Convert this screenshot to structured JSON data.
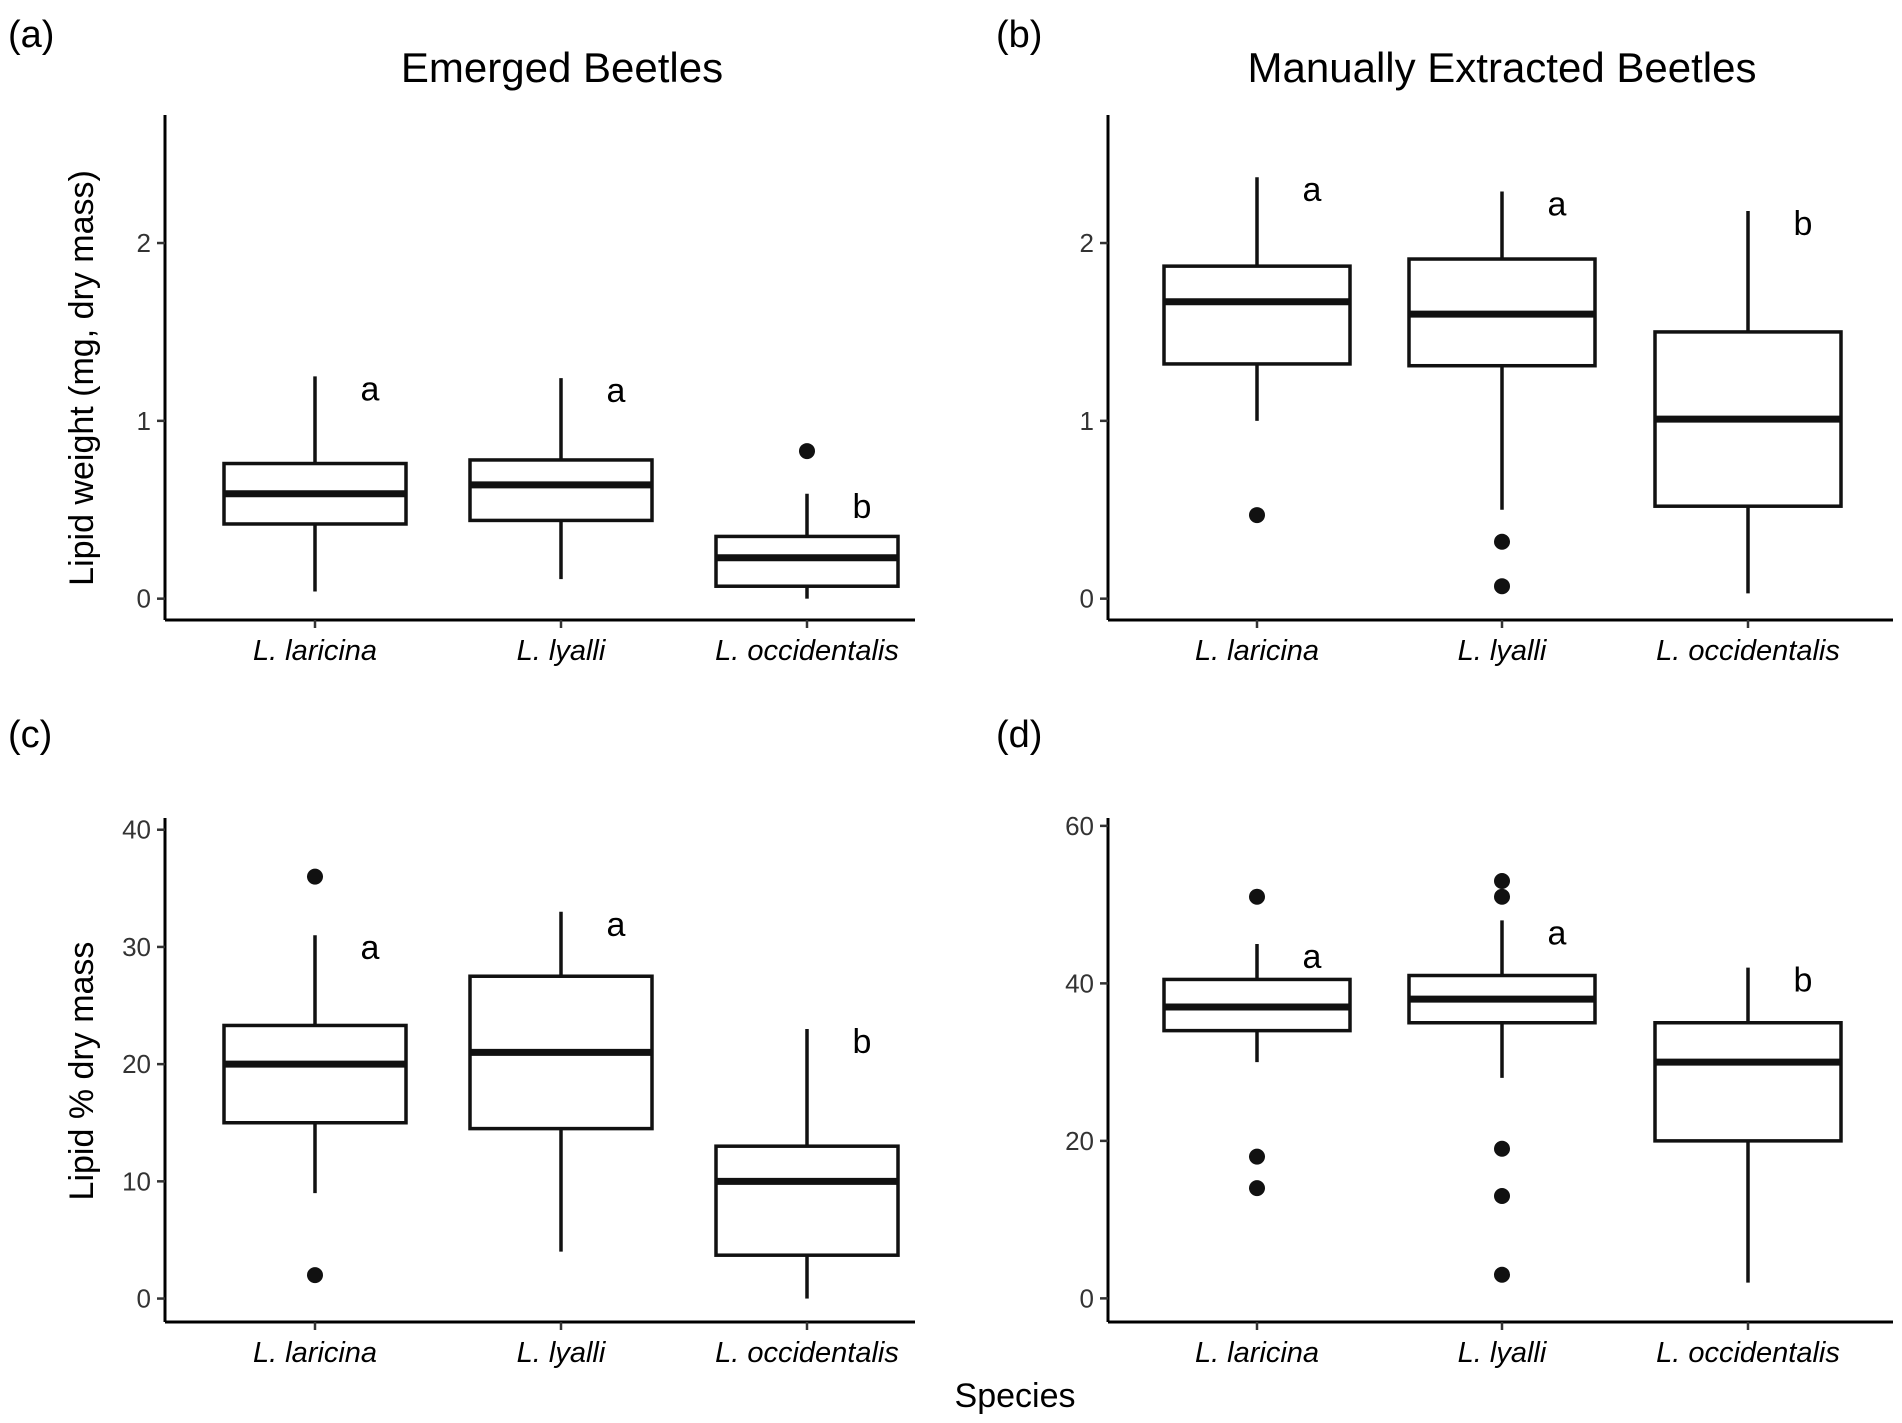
{
  "figure": {
    "x_axis_title": "Species",
    "y_axis_title_top": "Lipid weight (mg, dry mass)",
    "y_axis_title_bottom": "Lipid % dry mass"
  },
  "chart_data": [
    {
      "type": "boxplot",
      "panel": "(a)",
      "title": "Emerged Beetles",
      "xlabel": "Species",
      "ylabel": "Lipid weight (mg, dry mass)",
      "ylim": [
        -0.12,
        2.72
      ],
      "yticks": [
        0,
        1,
        2
      ],
      "categories": [
        "L. laricina",
        "L. lyalli",
        "L. occidentalis"
      ],
      "boxes": [
        {
          "min": 0.04,
          "q1": 0.42,
          "median": 0.59,
          "q3": 0.76,
          "max": 1.25,
          "outliers": [],
          "letter": "a"
        },
        {
          "min": 0.11,
          "q1": 0.44,
          "median": 0.64,
          "q3": 0.78,
          "max": 1.24,
          "outliers": [],
          "letter": "a"
        },
        {
          "min": 0.0,
          "q1": 0.07,
          "median": 0.23,
          "q3": 0.35,
          "max": 0.59,
          "outliers": [
            0.83
          ],
          "letter": "b"
        }
      ]
    },
    {
      "type": "boxplot",
      "panel": "(b)",
      "title": "Manually Extracted Beetles",
      "xlabel": "Species",
      "ylabel": "",
      "ylim": [
        -0.12,
        2.72
      ],
      "yticks": [
        0,
        1,
        2
      ],
      "categories": [
        "L. laricina",
        "L. lyalli",
        "L. occidentalis"
      ],
      "boxes": [
        {
          "min": 1.0,
          "q1": 1.32,
          "median": 1.67,
          "q3": 1.87,
          "max": 2.37,
          "outliers": [
            0.47
          ],
          "letter": "a"
        },
        {
          "min": 0.5,
          "q1": 1.31,
          "median": 1.6,
          "q3": 1.91,
          "max": 2.29,
          "outliers": [
            0.32,
            0.07
          ],
          "letter": "a"
        },
        {
          "min": 0.03,
          "q1": 0.52,
          "median": 1.01,
          "q3": 1.5,
          "max": 2.18,
          "outliers": [],
          "letter": "b"
        }
      ]
    },
    {
      "type": "boxplot",
      "panel": "(c)",
      "title": "",
      "xlabel": "Species",
      "ylabel": "Lipid % dry mass",
      "ylim": [
        -2,
        41
      ],
      "yticks": [
        0,
        10,
        20,
        30,
        40
      ],
      "categories": [
        "L. laricina",
        "L. lyalli",
        "L. occidentalis"
      ],
      "boxes": [
        {
          "min": 9,
          "q1": 15,
          "median": 20,
          "q3": 23.3,
          "max": 31,
          "outliers": [
            36,
            2
          ],
          "letter": "a"
        },
        {
          "min": 4,
          "q1": 14.5,
          "median": 21,
          "q3": 27.5,
          "max": 33,
          "outliers": [],
          "letter": "a"
        },
        {
          "min": 0,
          "q1": 3.7,
          "median": 10,
          "q3": 13,
          "max": 23,
          "outliers": [],
          "letter": "b"
        }
      ]
    },
    {
      "type": "boxplot",
      "panel": "(d)",
      "title": "",
      "xlabel": "Species",
      "ylabel": "",
      "ylim": [
        -3,
        61
      ],
      "yticks": [
        0,
        20,
        40,
        60
      ],
      "categories": [
        "L. laricina",
        "L. lyalli",
        "L. occidentalis"
      ],
      "boxes": [
        {
          "min": 30,
          "q1": 34,
          "median": 37,
          "q3": 40.5,
          "max": 45,
          "outliers": [
            51,
            18,
            14
          ],
          "letter": "a"
        },
        {
          "min": 28,
          "q1": 35,
          "median": 38,
          "q3": 41,
          "max": 48,
          "outliers": [
            53,
            51,
            19,
            13,
            3
          ],
          "letter": "a"
        },
        {
          "min": 2,
          "q1": 20,
          "median": 30,
          "q3": 35,
          "max": 42,
          "outliers": [],
          "letter": "b"
        }
      ]
    }
  ]
}
